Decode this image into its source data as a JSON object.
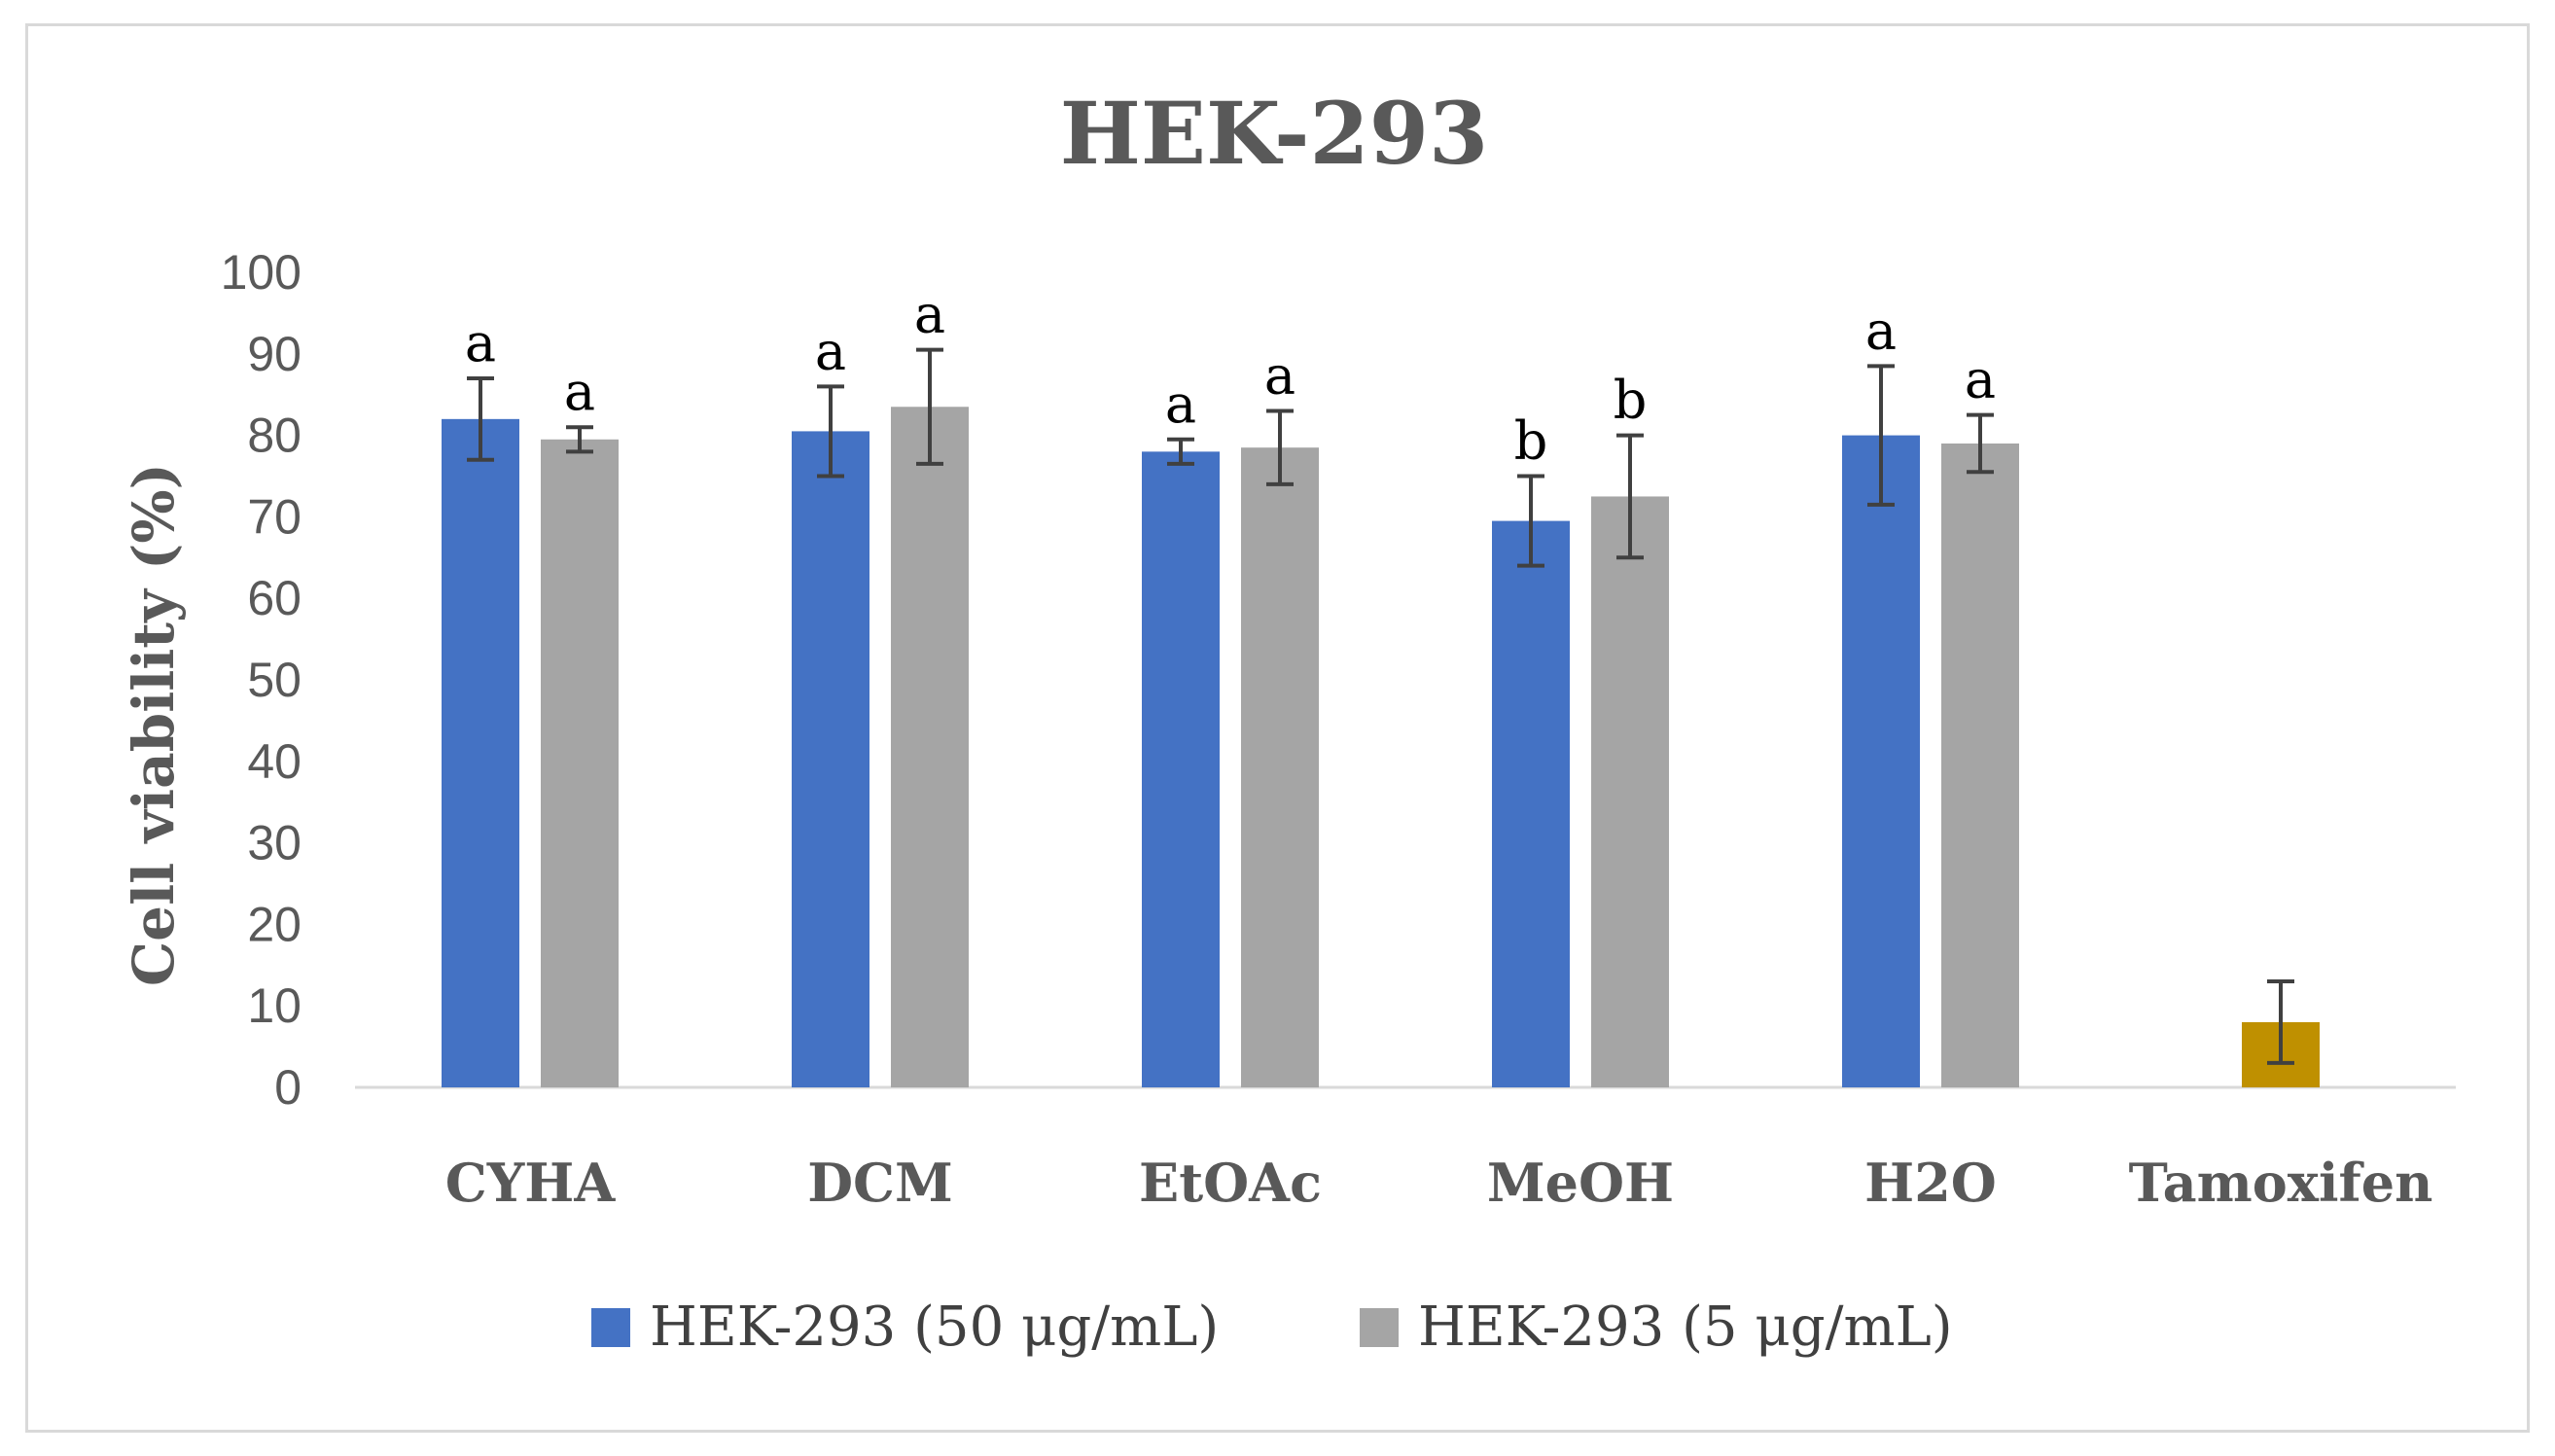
{
  "chart_data": {
    "type": "bar",
    "title": "HEK-293",
    "xlabel": "",
    "ylabel": "Cell viability (%)",
    "ylim": [
      0,
      100
    ],
    "yticks": [
      0,
      10,
      20,
      30,
      40,
      50,
      60,
      70,
      80,
      90,
      100
    ],
    "grid": false,
    "legend_position": "bottom",
    "categories": [
      "CYHA",
      "DCM",
      "EtOAc",
      "MeOH",
      "H2O",
      "Tamoxifen"
    ],
    "series": [
      {
        "name": "HEK-293 (50 μg/mL)",
        "color": "#4472c4",
        "values": [
          82,
          80.5,
          78,
          69.5,
          80,
          null
        ],
        "errors": [
          5,
          5.5,
          1.5,
          5.5,
          8.5,
          null
        ],
        "labels": [
          "a",
          "a",
          "a",
          "b",
          "a",
          null
        ]
      },
      {
        "name": "HEK-293 (5 μg/mL)",
        "color": "#a5a5a5",
        "values": [
          79.5,
          83.5,
          78.5,
          72.5,
          79,
          null
        ],
        "errors": [
          1.5,
          7,
          4.5,
          7.5,
          3.5,
          null
        ],
        "labels": [
          "a",
          "a",
          "a",
          "b",
          "a",
          null
        ]
      },
      {
        "name": "Tamoxifen",
        "color": "#bf9000",
        "values": [
          null,
          null,
          null,
          null,
          null,
          8
        ],
        "errors": [
          null,
          null,
          null,
          null,
          null,
          5
        ],
        "labels": [
          null,
          null,
          null,
          null,
          null,
          null
        ]
      }
    ],
    "legend": [
      "HEK-293 (50 μg/mL)",
      "HEK-293 (5 μg/mL)"
    ]
  }
}
